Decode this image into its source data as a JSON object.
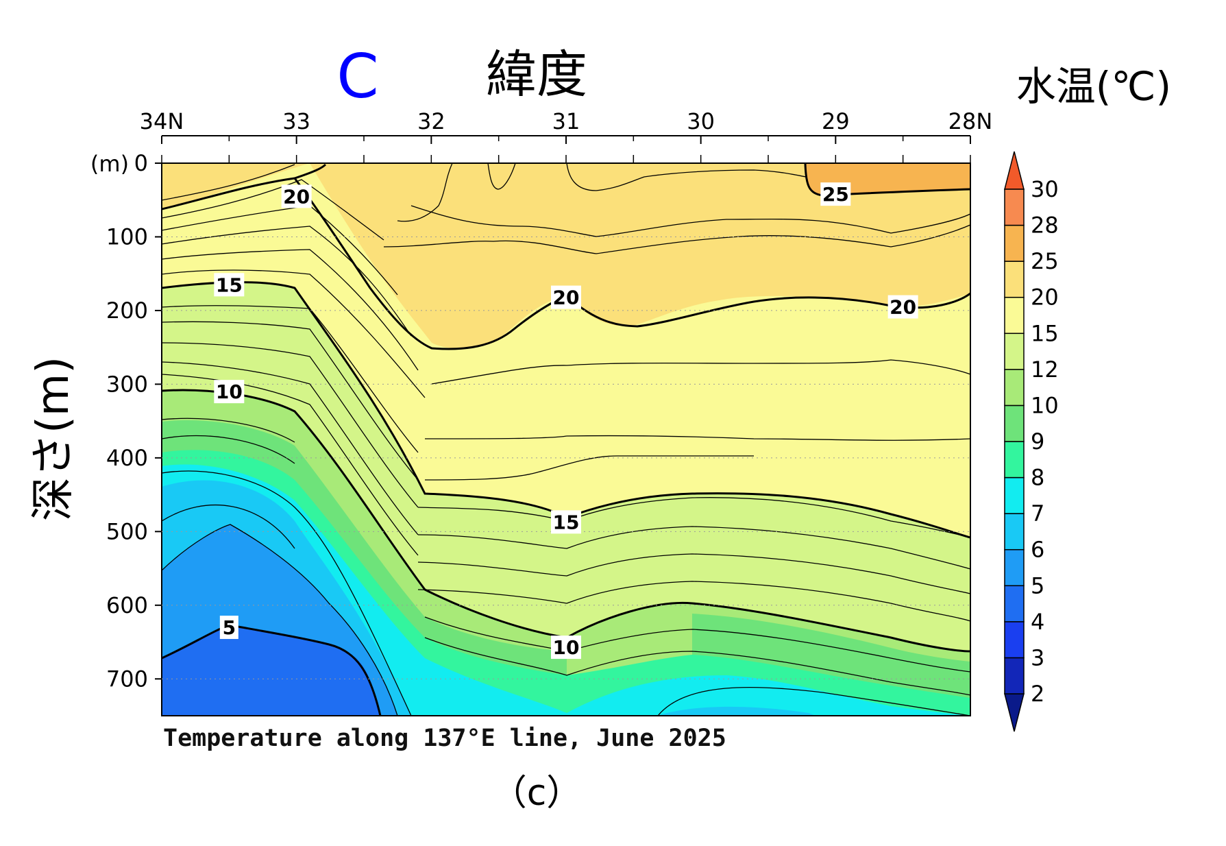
{
  "panel_letter": "C",
  "panel_tag": "（c）",
  "colorbar_title": "水温(℃)",
  "chart_data": {
    "type": "heatmap",
    "title": "Temperature along 137°E line, June 2025",
    "xlabel": "緯度",
    "ylabel": "深さ(m)",
    "yunit_label": "(m)",
    "x_ticks": [
      "34N",
      "33",
      "32",
      "31",
      "30",
      "29",
      "28N"
    ],
    "xlim": [
      34,
      28
    ],
    "y_ticks": [
      "0",
      "100",
      "200",
      "300",
      "400",
      "500",
      "600",
      "700"
    ],
    "ylim": [
      0,
      750
    ],
    "colorbar": {
      "labels": [
        "2",
        "3",
        "4",
        "5",
        "6",
        "7",
        "8",
        "9",
        "10",
        "12",
        "15",
        "20",
        "25",
        "28",
        "30"
      ],
      "colors": [
        "#0a1a8a",
        "#1226b8",
        "#1a3ff0",
        "#1f6ef2",
        "#1f9cf5",
        "#19c9f5",
        "#12ecf0",
        "#33f59e",
        "#6ee37a",
        "#a8ea78",
        "#d4f589",
        "#fafa96",
        "#fbe07a",
        "#f7b450",
        "#f78a50",
        "#f25a2a"
      ]
    },
    "contour_labels": [
      {
        "text": "20",
        "lat": 33.0,
        "depth": 45
      },
      {
        "text": "25",
        "lat": 29.0,
        "depth": 42
      },
      {
        "text": "15",
        "lat": 33.5,
        "depth": 165
      },
      {
        "text": "20",
        "lat": 31.0,
        "depth": 182
      },
      {
        "text": "20",
        "lat": 28.5,
        "depth": 195
      },
      {
        "text": "10",
        "lat": 33.5,
        "depth": 310
      },
      {
        "text": "15",
        "lat": 31.0,
        "depth": 487
      },
      {
        "text": "5",
        "lat": 33.5,
        "depth": 630
      },
      {
        "text": "10",
        "lat": 31.0,
        "depth": 657
      }
    ]
  }
}
